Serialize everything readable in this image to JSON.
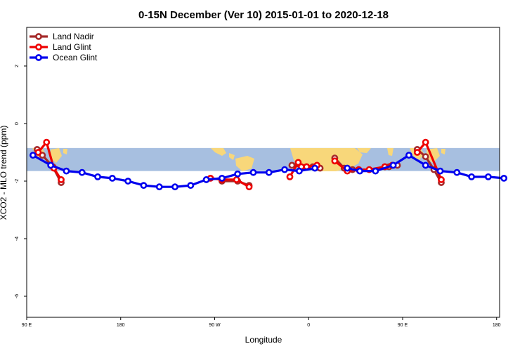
{
  "chart_data": {
    "type": "line",
    "title": "0-15N December (Ver 10)   2015-01-01 to 2020-12-18",
    "xlabel": "Longitude",
    "ylabel": "XCO2 - MLO trend (ppm)",
    "xlim": [
      90,
      450
    ],
    "ylim": [
      -6.5,
      3.4
    ],
    "x_ticks": [
      {
        "value": 90,
        "label": "90 E"
      },
      {
        "value": 180,
        "label": "180"
      },
      {
        "value": 270,
        "label": "90 W"
      },
      {
        "value": 360,
        "label": "0"
      },
      {
        "value": 450,
        "label": "90 E"
      },
      {
        "value": 540,
        "label": "180"
      }
    ],
    "y_ticks": [
      {
        "value": 2,
        "label": "2"
      },
      {
        "value": 0,
        "label": "0"
      },
      {
        "value": -2,
        "label": "-2"
      },
      {
        "value": -4,
        "label": "-4"
      },
      {
        "value": -6,
        "label": "-6"
      }
    ],
    "map_band": {
      "lat_range_note": "0-15N",
      "y_range": [
        -1.65,
        -0.85
      ]
    },
    "legend_position": "top-left",
    "series": [
      {
        "name": "Land Nadir",
        "color": "#a52a2a",
        "segments": [
          {
            "x": [
              100,
              105,
              115,
              123
            ],
            "y": [
              -0.9,
              -1.1,
              -1.5,
              -2.05
            ]
          },
          {
            "x": [
              277,
              292,
              303
            ],
            "y": [
              -2.0,
              -2.0,
              -2.15
            ]
          },
          {
            "x": [
              344,
              350,
              358,
              364,
              371
            ],
            "y": [
              -1.45,
              -1.4,
              -1.5,
              -1.5,
              -1.55
            ]
          },
          {
            "x": [
              385,
              394,
              402
            ],
            "y": [
              -1.2,
              -1.55,
              -1.6
            ]
          },
          {
            "x": [
              433,
              437,
              445
            ],
            "y": [
              -1.5,
              -1.5,
              -1.45
            ]
          },
          {
            "x": [
              464,
              472,
              480,
              487
            ],
            "y": [
              -0.9,
              -1.15,
              -1.6,
              -2.05
            ]
          }
        ]
      },
      {
        "name": "Land Glint",
        "color": "#ee0000",
        "segments": [
          {
            "x": [
              101,
              109,
              116,
              123
            ],
            "y": [
              -1.0,
              -0.65,
              -1.55,
              -1.95
            ]
          },
          {
            "x": [
              266,
              277,
              291,
              303
            ],
            "y": [
              -1.9,
              -1.95,
              -1.95,
              -2.2
            ]
          },
          {
            "x": [
              342,
              350,
              353,
              358,
              368
            ],
            "y": [
              -1.85,
              -1.35,
              -1.5,
              -1.5,
              -1.45
            ]
          },
          {
            "x": [
              385,
              397,
              408,
              418,
              433,
              440
            ],
            "y": [
              -1.3,
              -1.65,
              -1.6,
              -1.6,
              -1.5,
              -1.45
            ]
          },
          {
            "x": [
              464,
              472,
              487
            ],
            "y": [
              -1.0,
              -0.65,
              -1.95
            ]
          }
        ]
      },
      {
        "name": "Ocean Glint",
        "color": "#0000ee",
        "segments": [
          {
            "x": [
              96,
              113,
              128,
              143,
              158,
              172,
              187,
              202,
              217,
              232,
              247,
              262,
              277,
              292,
              307,
              322,
              337,
              351,
              366
            ],
            "y": [
              -1.1,
              -1.45,
              -1.65,
              -1.7,
              -1.85,
              -1.9,
              -2.0,
              -2.15,
              -2.2,
              -2.2,
              -2.15,
              -1.95,
              -1.9,
              -1.75,
              -1.7,
              -1.7,
              -1.6,
              -1.65,
              -1.55
            ]
          },
          {
            "x": [
              397,
              409,
              424,
              441,
              456,
              472,
              486,
              502,
              516,
              532,
              547
            ],
            "y": [
              -1.55,
              -1.65,
              -1.65,
              -1.45,
              -1.1,
              -1.45,
              -1.65,
              -1.7,
              -1.85,
              -1.85,
              -1.9
            ]
          }
        ]
      }
    ]
  }
}
